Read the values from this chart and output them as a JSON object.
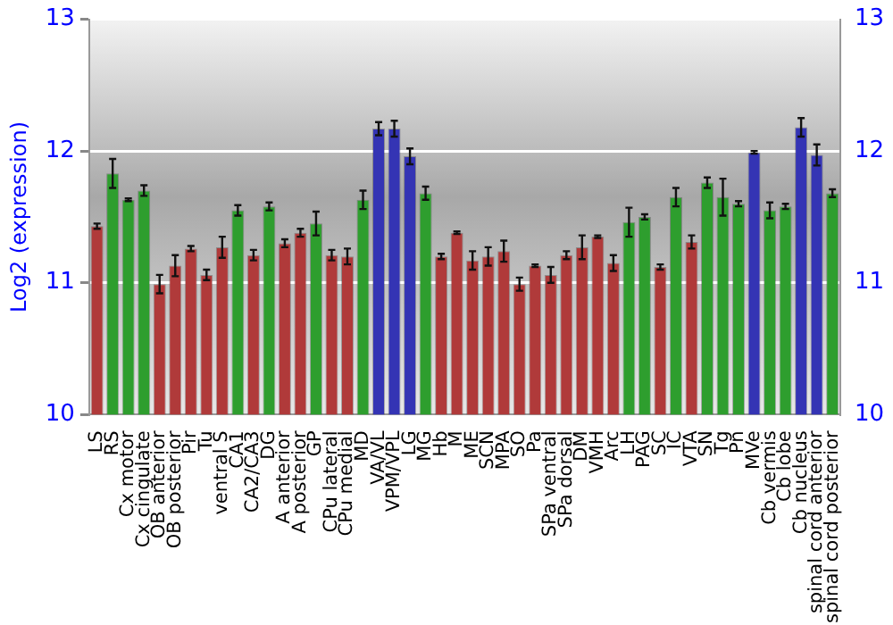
{
  "chart_data": {
    "type": "bar",
    "ylabel": "Log2 (expression)",
    "categories": [
      "LS",
      "RS",
      "Cx motor",
      "Cx cingulate",
      "OB anterior",
      "OB posterior",
      "Pir",
      "Tu",
      "ventral S",
      "CA1",
      "CA2/CA3",
      "DG",
      "A anterior",
      "A posterior",
      "GP",
      "CPu lateral",
      "CPu medial",
      "MD",
      "VA/VL",
      "VPM/VPL",
      "LG",
      "MG",
      "Hb",
      "M",
      "ME",
      "SCN",
      "MPA",
      "SO",
      "Pa",
      "SPa ventral",
      "SPa dorsal",
      "DM",
      "VMH",
      "Arc",
      "LH",
      "PAG",
      "SC",
      "IC",
      "VTA",
      "SN",
      "Tg",
      "Pn",
      "MVe",
      "Cb vermis",
      "Cb lobe",
      "Cb nucleus",
      "spinal cord anterior",
      "spinal cord posterior"
    ],
    "values": [
      11.43,
      11.83,
      11.63,
      11.7,
      10.99,
      11.13,
      11.26,
      11.06,
      11.27,
      11.55,
      11.21,
      11.58,
      11.3,
      11.38,
      11.45,
      11.21,
      11.2,
      11.63,
      12.17,
      12.17,
      11.96,
      11.68,
      11.2,
      11.38,
      11.17,
      11.2,
      11.24,
      10.99,
      11.13,
      11.06,
      11.21,
      11.27,
      11.35,
      11.15,
      11.46,
      11.5,
      11.12,
      11.65,
      11.31,
      11.76,
      11.65,
      11.6,
      11.99,
      11.55,
      11.58,
      12.18,
      11.97,
      11.68
    ],
    "errors": [
      0.02,
      0.11,
      0.01,
      0.04,
      0.07,
      0.08,
      0.02,
      0.04,
      0.08,
      0.04,
      0.04,
      0.03,
      0.03,
      0.03,
      0.09,
      0.04,
      0.06,
      0.07,
      0.05,
      0.06,
      0.06,
      0.05,
      0.02,
      0.01,
      0.07,
      0.07,
      0.08,
      0.05,
      0.01,
      0.06,
      0.03,
      0.09,
      0.01,
      0.06,
      0.11,
      0.02,
      0.02,
      0.07,
      0.05,
      0.04,
      0.14,
      0.02,
      0.01,
      0.06,
      0.02,
      0.07,
      0.08,
      0.03
    ],
    "colors": [
      "#b03a3a",
      "#2e9e2e",
      "#2e9e2e",
      "#2e9e2e",
      "#b03a3a",
      "#b03a3a",
      "#b03a3a",
      "#b03a3a",
      "#b03a3a",
      "#2e9e2e",
      "#b03a3a",
      "#2e9e2e",
      "#b03a3a",
      "#b03a3a",
      "#2e9e2e",
      "#b03a3a",
      "#b03a3a",
      "#2e9e2e",
      "#3434b4",
      "#3434b4",
      "#3434b4",
      "#2e9e2e",
      "#b03a3a",
      "#b03a3a",
      "#b03a3a",
      "#b03a3a",
      "#b03a3a",
      "#b03a3a",
      "#b03a3a",
      "#b03a3a",
      "#b03a3a",
      "#b03a3a",
      "#b03a3a",
      "#b03a3a",
      "#2e9e2e",
      "#2e9e2e",
      "#b03a3a",
      "#2e9e2e",
      "#b03a3a",
      "#2e9e2e",
      "#2e9e2e",
      "#2e9e2e",
      "#3434b4",
      "#2e9e2e",
      "#2e9e2e",
      "#3434b4",
      "#3434b4",
      "#2e9e2e"
    ],
    "ylim": [
      10,
      13
    ],
    "yticks": [
      10,
      11,
      12,
      13
    ],
    "y2lim": [
      10,
      13
    ],
    "y2ticks": [
      10,
      11,
      12,
      13
    ],
    "grid": "y",
    "legend": false
  }
}
